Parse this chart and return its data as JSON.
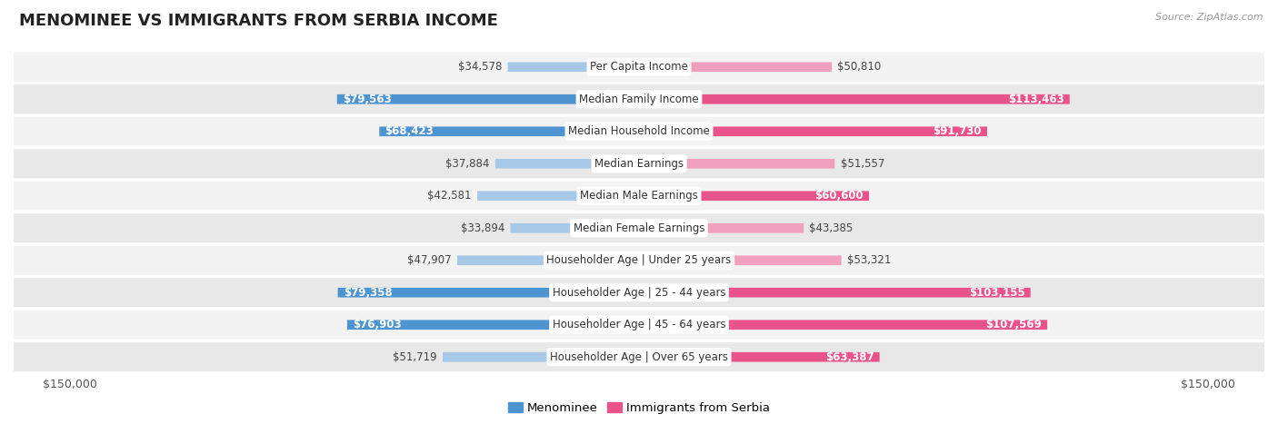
{
  "title": "MENOMINEE VS IMMIGRANTS FROM SERBIA INCOME",
  "source": "Source: ZipAtlas.com",
  "categories": [
    "Per Capita Income",
    "Median Family Income",
    "Median Household Income",
    "Median Earnings",
    "Median Male Earnings",
    "Median Female Earnings",
    "Householder Age | Under 25 years",
    "Householder Age | 25 - 44 years",
    "Householder Age | 45 - 64 years",
    "Householder Age | Over 65 years"
  ],
  "menominee_values": [
    34578,
    79563,
    68423,
    37884,
    42581,
    33894,
    47907,
    79358,
    76903,
    51719
  ],
  "serbia_values": [
    50810,
    113463,
    91730,
    51557,
    60600,
    43385,
    53321,
    103155,
    107569,
    63387
  ],
  "menominee_labels": [
    "$34,578",
    "$79,563",
    "$68,423",
    "$37,884",
    "$42,581",
    "$33,894",
    "$47,907",
    "$79,358",
    "$76,903",
    "$51,719"
  ],
  "serbia_labels": [
    "$50,810",
    "$113,463",
    "$91,730",
    "$51,557",
    "$60,600",
    "$43,385",
    "$53,321",
    "$103,155",
    "$107,569",
    "$63,387"
  ],
  "max_value": 150000,
  "color_menominee_dark": "#4d94d0",
  "color_menominee_light": "#a8c8e8",
  "color_serbia_dark": "#e8538a",
  "color_serbia_light": "#f0a0bc",
  "row_colors": [
    "#f2f2f2",
    "#e8e8e8"
  ],
  "large_threshold": 60000,
  "label_fontsize": 8.5,
  "title_fontsize": 13,
  "legend_fontsize": 9.5
}
